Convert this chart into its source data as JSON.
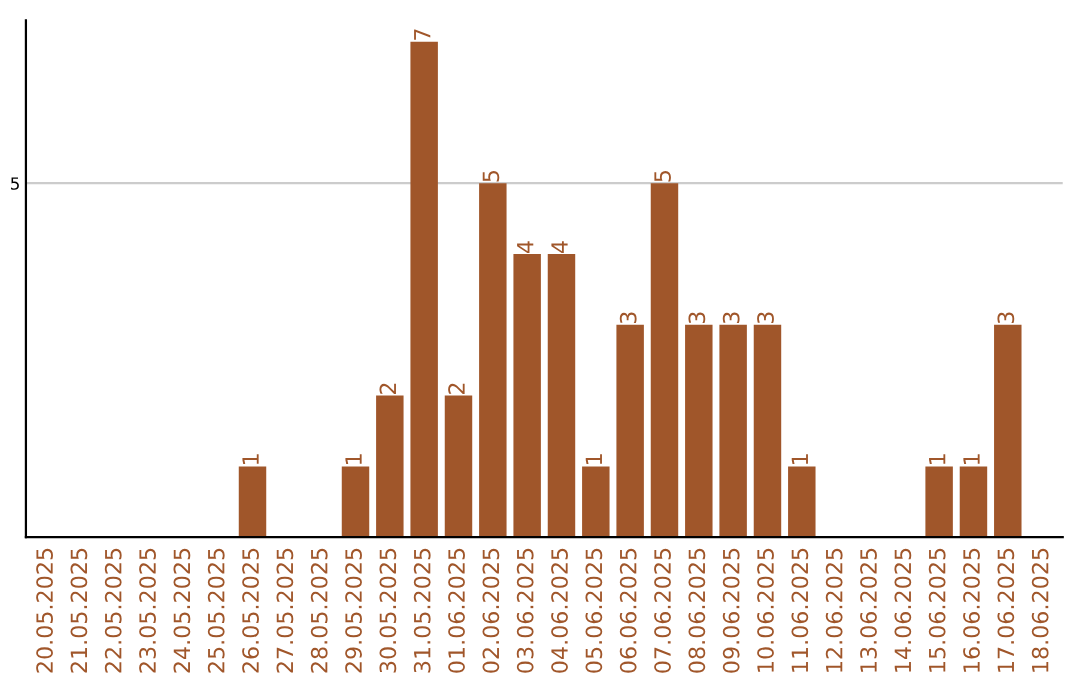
{
  "chart_data": {
    "type": "bar",
    "categories": [
      "20.05.2025",
      "21.05.2025",
      "22.05.2025",
      "23.05.2025",
      "24.05.2025",
      "25.05.2025",
      "26.05.2025",
      "27.05.2025",
      "28.05.2025",
      "29.05.2025",
      "30.05.2025",
      "31.05.2025",
      "01.06.2025",
      "02.06.2025",
      "03.06.2025",
      "04.06.2025",
      "05.06.2025",
      "06.06.2025",
      "07.06.2025",
      "08.06.2025",
      "09.06.2025",
      "10.06.2025",
      "11.06.2025",
      "12.06.2025",
      "13.06.2025",
      "14.06.2025",
      "15.06.2025",
      "16.06.2025",
      "17.06.2025",
      "18.06.2025"
    ],
    "values": [
      0,
      0,
      0,
      0,
      0,
      0,
      1,
      0,
      0,
      1,
      2,
      7,
      2,
      5,
      4,
      4,
      1,
      3,
      5,
      3,
      3,
      3,
      1,
      0,
      0,
      0,
      1,
      1,
      3,
      0
    ],
    "value_labels": [
      null,
      null,
      null,
      null,
      null,
      null,
      "1",
      null,
      null,
      "1",
      "2",
      "7",
      "2",
      "5",
      "4",
      "4",
      "1",
      "3",
      "5",
      "3",
      "3",
      "3",
      "1",
      null,
      null,
      null,
      "1",
      "1",
      "3",
      null
    ],
    "color": "#a0562a",
    "ylim": [
      0,
      7.3
    ],
    "yticks": [
      5
    ],
    "grid": "y"
  }
}
